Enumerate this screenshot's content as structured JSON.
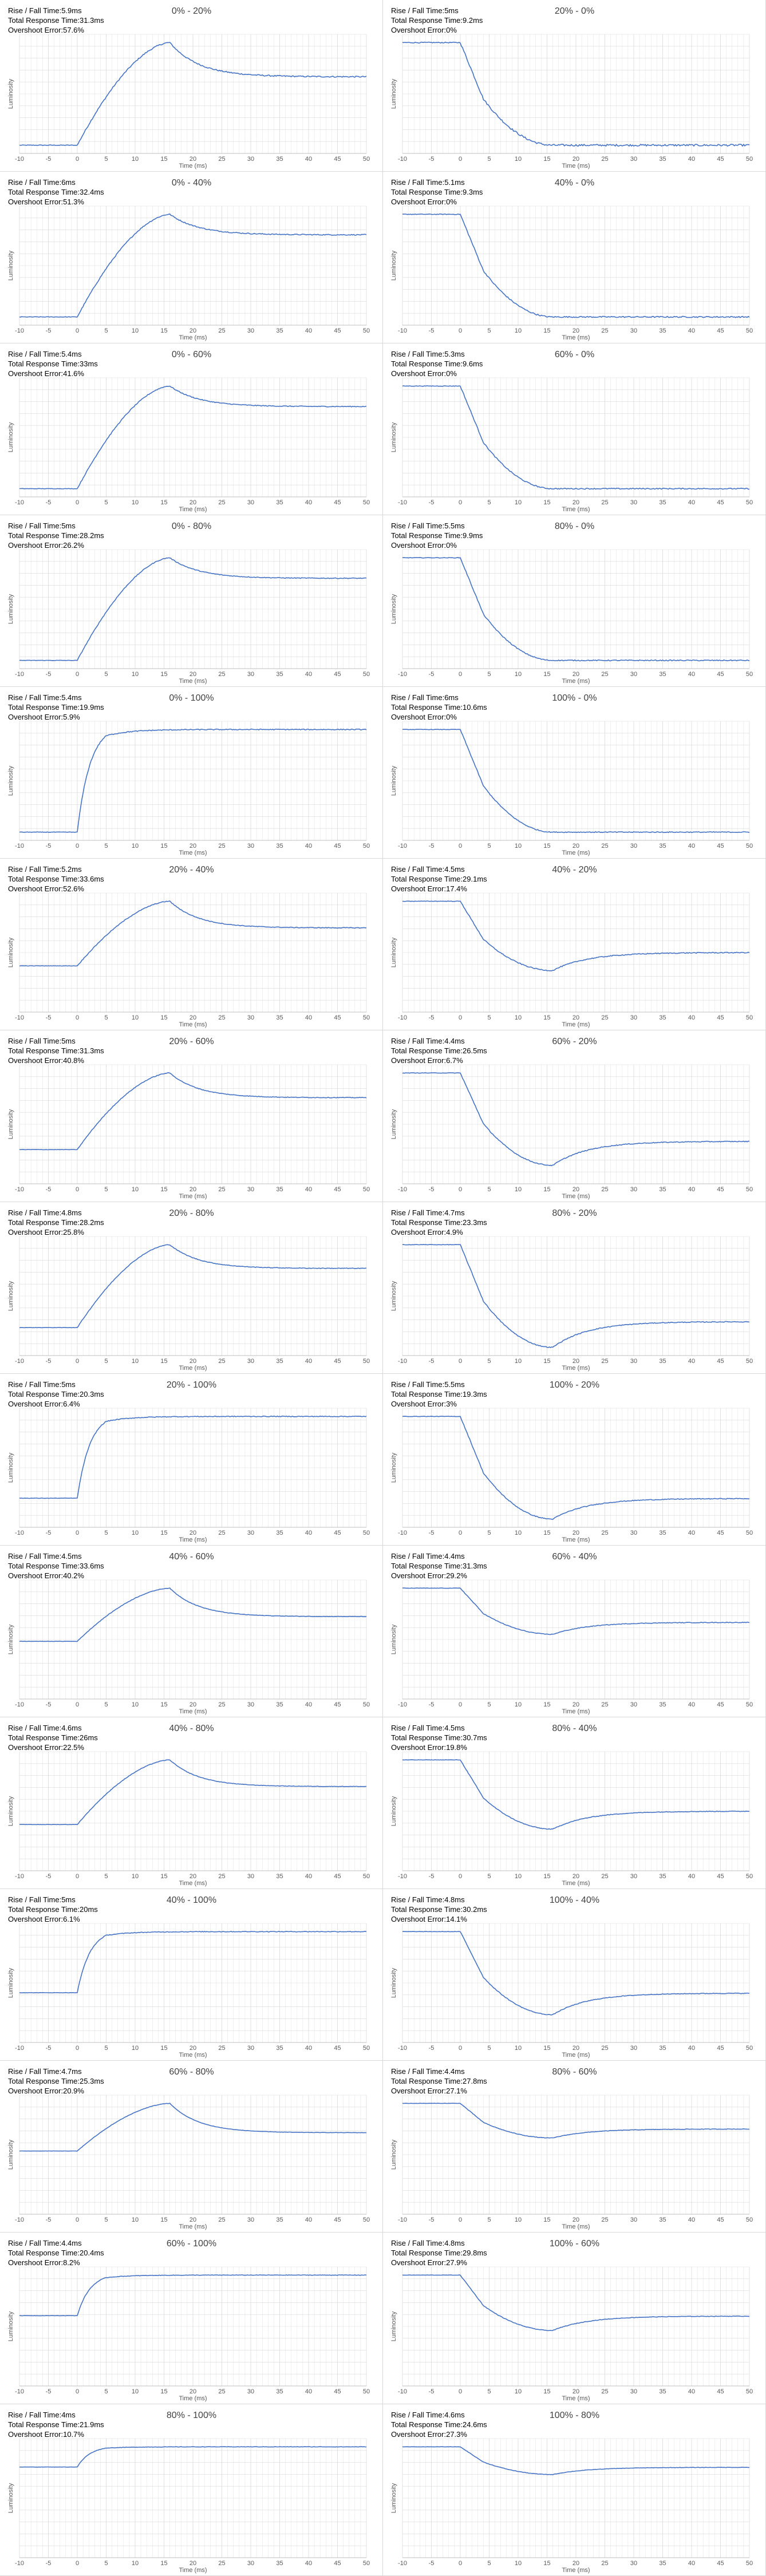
{
  "axis": {
    "xlabel": "Time (ms)",
    "ylabel": "Luminosity",
    "xlim": [
      -10,
      50
    ],
    "xticks": [
      -10,
      -5,
      0,
      5,
      10,
      15,
      20,
      25,
      30,
      35,
      40,
      45,
      50
    ]
  },
  "labels": {
    "rise_fall": "Rise / Fall Time:",
    "total": "Total Response Time:",
    "overshoot": "Overshoot Error:"
  },
  "colors": {
    "line": "#4472C4",
    "grid": "#d9d9d9"
  },
  "chart_data": [
    {
      "type": "line",
      "title": "0% - 20%",
      "rise_fall": "5.9ms",
      "total": "31.3ms",
      "overshoot": "57.6%",
      "from": 0,
      "to": 20
    },
    {
      "type": "line",
      "title": "20% - 0%",
      "rise_fall": "5ms",
      "total": "9.2ms",
      "overshoot": "0%",
      "from": 20,
      "to": 0
    },
    {
      "type": "line",
      "title": "0% - 40%",
      "rise_fall": "6ms",
      "total": "32.4ms",
      "overshoot": "51.3%",
      "from": 0,
      "to": 40
    },
    {
      "type": "line",
      "title": "40% - 0%",
      "rise_fall": "5.1ms",
      "total": "9.3ms",
      "overshoot": "0%",
      "from": 40,
      "to": 0
    },
    {
      "type": "line",
      "title": "0% - 60%",
      "rise_fall": "5.4ms",
      "total": "33ms",
      "overshoot": "41.6%",
      "from": 0,
      "to": 60
    },
    {
      "type": "line",
      "title": "60% - 0%",
      "rise_fall": "5.3ms",
      "total": "9.6ms",
      "overshoot": "0%",
      "from": 60,
      "to": 0
    },
    {
      "type": "line",
      "title": "0% - 80%",
      "rise_fall": "5ms",
      "total": "28.2ms",
      "overshoot": "26.2%",
      "from": 0,
      "to": 80
    },
    {
      "type": "line",
      "title": "80% - 0%",
      "rise_fall": "5.5ms",
      "total": "9.9ms",
      "overshoot": "0%",
      "from": 80,
      "to": 0
    },
    {
      "type": "line",
      "title": "0% - 100%",
      "rise_fall": "5.4ms",
      "total": "19.9ms",
      "overshoot": "5.9%",
      "from": 0,
      "to": 100
    },
    {
      "type": "line",
      "title": "100% - 0%",
      "rise_fall": "6ms",
      "total": "10.6ms",
      "overshoot": "0%",
      "from": 100,
      "to": 0
    },
    {
      "type": "line",
      "title": "20% - 40%",
      "rise_fall": "5.2ms",
      "total": "33.6ms",
      "overshoot": "52.6%",
      "from": 20,
      "to": 40
    },
    {
      "type": "line",
      "title": "40% - 20%",
      "rise_fall": "4.5ms",
      "total": "29.1ms",
      "overshoot": "17.4%",
      "from": 40,
      "to": 20
    },
    {
      "type": "line",
      "title": "20% - 60%",
      "rise_fall": "5ms",
      "total": "31.3ms",
      "overshoot": "40.8%",
      "from": 20,
      "to": 60
    },
    {
      "type": "line",
      "title": "60% - 20%",
      "rise_fall": "4.4ms",
      "total": "26.5ms",
      "overshoot": "6.7%",
      "from": 60,
      "to": 20
    },
    {
      "type": "line",
      "title": "20% - 80%",
      "rise_fall": "4.8ms",
      "total": "28.2ms",
      "overshoot": "25.8%",
      "from": 20,
      "to": 80
    },
    {
      "type": "line",
      "title": "80% - 20%",
      "rise_fall": "4.7ms",
      "total": "23.3ms",
      "overshoot": "4.9%",
      "from": 80,
      "to": 20
    },
    {
      "type": "line",
      "title": "20% - 100%",
      "rise_fall": "5ms",
      "total": "20.3ms",
      "overshoot": "6.4%",
      "from": 20,
      "to": 100
    },
    {
      "type": "line",
      "title": "100% - 20%",
      "rise_fall": "5.5ms",
      "total": "19.3ms",
      "overshoot": "3%",
      "from": 100,
      "to": 20
    },
    {
      "type": "line",
      "title": "40% - 60%",
      "rise_fall": "4.5ms",
      "total": "33.6ms",
      "overshoot": "40.2%",
      "from": 40,
      "to": 60
    },
    {
      "type": "line",
      "title": "60% - 40%",
      "rise_fall": "4.4ms",
      "total": "31.3ms",
      "overshoot": "29.2%",
      "from": 60,
      "to": 40
    },
    {
      "type": "line",
      "title": "40% - 80%",
      "rise_fall": "4.6ms",
      "total": "26ms",
      "overshoot": "22.5%",
      "from": 40,
      "to": 80
    },
    {
      "type": "line",
      "title": "80% - 40%",
      "rise_fall": "4.5ms",
      "total": "30.7ms",
      "overshoot": "19.8%",
      "from": 80,
      "to": 40
    },
    {
      "type": "line",
      "title": "40% - 100%",
      "rise_fall": "5ms",
      "total": "20ms",
      "overshoot": "6.1%",
      "from": 40,
      "to": 100
    },
    {
      "type": "line",
      "title": "100% - 40%",
      "rise_fall": "4.8ms",
      "total": "30.2ms",
      "overshoot": "14.1%",
      "from": 100,
      "to": 40
    },
    {
      "type": "line",
      "title": "60% - 80%",
      "rise_fall": "4.7ms",
      "total": "25.3ms",
      "overshoot": "20.9%",
      "from": 60,
      "to": 80
    },
    {
      "type": "line",
      "title": "80% - 60%",
      "rise_fall": "4.4ms",
      "total": "27.8ms",
      "overshoot": "27.1%",
      "from": 80,
      "to": 60
    },
    {
      "type": "line",
      "title": "60% - 100%",
      "rise_fall": "4.4ms",
      "total": "20.4ms",
      "overshoot": "8.2%",
      "from": 60,
      "to": 100
    },
    {
      "type": "line",
      "title": "100% - 60%",
      "rise_fall": "4.8ms",
      "total": "29.8ms",
      "overshoot": "27.9%",
      "from": 100,
      "to": 60
    },
    {
      "type": "line",
      "title": "80% - 100%",
      "rise_fall": "4ms",
      "total": "21.9ms",
      "overshoot": "10.7%",
      "from": 80,
      "to": 100
    },
    {
      "type": "line",
      "title": "100% - 80%",
      "rise_fall": "4.6ms",
      "total": "24.6ms",
      "overshoot": "27.3%",
      "from": 100,
      "to": 80
    }
  ]
}
